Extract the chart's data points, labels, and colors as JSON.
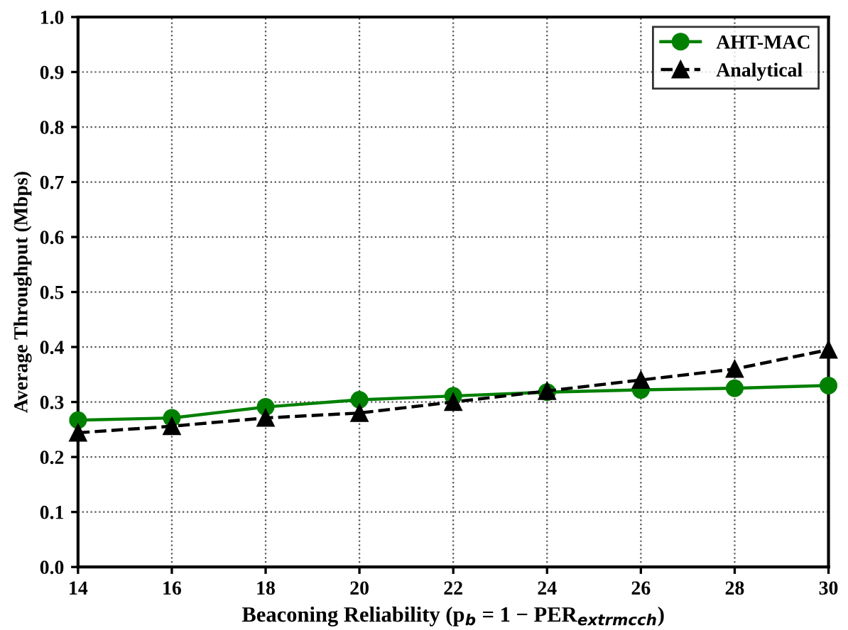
{
  "chart_data": {
    "type": "line",
    "xlabel": "Beaconing Reliability (p$_{b}$ = 1 − PER$_{extrmcch}$)",
    "ylabel": "Average Throughput (Mbps)",
    "x": [
      14,
      16,
      18,
      20,
      22,
      24,
      26,
      28,
      30
    ],
    "series": [
      {
        "name": "AHT-MAC",
        "color": "#008000",
        "marker": "circle",
        "line_style": "solid",
        "values": [
          0.267,
          0.271,
          0.291,
          0.304,
          0.311,
          0.318,
          0.322,
          0.325,
          0.33
        ]
      },
      {
        "name": "Analytical",
        "color": "#000000",
        "marker": "triangle",
        "line_style": "dashed",
        "values": [
          0.244,
          0.256,
          0.271,
          0.28,
          0.3,
          0.32,
          0.34,
          0.36,
          0.395
        ]
      }
    ],
    "xlim": [
      14,
      30
    ],
    "xticks": [
      14,
      16,
      18,
      20,
      22,
      24,
      26,
      28,
      30
    ],
    "ylim": [
      0,
      1.0
    ],
    "yticks": [
      {
        "value": 0,
        "label": "0.0"
      },
      0.1,
      0.2,
      0.3,
      0.4,
      0.5,
      0.6,
      0.7,
      0.8,
      0.9,
      {
        "value": 1,
        "label": "1.0"
      }
    ],
    "grid": true,
    "legend": "top right"
  }
}
